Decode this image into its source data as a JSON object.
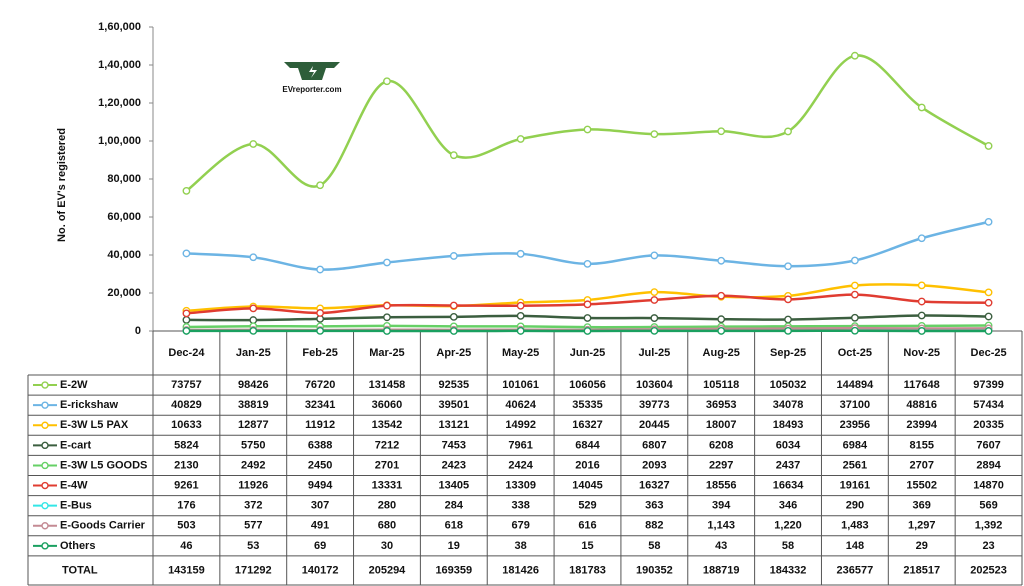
{
  "chart_data": {
    "type": "line",
    "y_label": "No. of EV's registered",
    "logo_text": "EVreporter.com",
    "categories": [
      "Dec-24",
      "Jan-25",
      "Feb-25",
      "Mar-25",
      "Apr-25",
      "May-25",
      "Jun-25",
      "Jul-25",
      "Aug-25",
      "Sep-25",
      "Oct-25",
      "Nov-25",
      "Dec-25"
    ],
    "ylim": [
      0,
      160000
    ],
    "yticks": [
      0,
      {
        "value": 20000,
        "label": "20,000"
      },
      {
        "value": 40000,
        "label": "40,000"
      },
      {
        "value": 60000,
        "label": "60,000"
      },
      {
        "value": 80000,
        "label": "80,000"
      },
      {
        "value": 100000,
        "label": "1,00,000"
      },
      {
        "value": 120000,
        "label": "1,20,000"
      },
      {
        "value": 140000,
        "label": "1,40,000"
      },
      {
        "value": 160000,
        "label": "1,60,000"
      }
    ],
    "series": [
      {
        "name": "E-2W",
        "color": "#92d050",
        "values": [
          73757,
          98426,
          76720,
          131458,
          92535,
          101061,
          106056,
          103604,
          105118,
          105032,
          144894,
          117648,
          97399
        ]
      },
      {
        "name": "E-rickshaw",
        "color": "#6cb4e4",
        "values": [
          40829,
          38819,
          32341,
          36060,
          39501,
          40624,
          35335,
          39773,
          36953,
          34078,
          37100,
          48816,
          57434
        ]
      },
      {
        "name": "E-3W L5 PAX",
        "color": "#ffc000",
        "values": [
          10633,
          12877,
          11912,
          13542,
          13121,
          14992,
          16327,
          20445,
          18007,
          18493,
          23956,
          23994,
          20335
        ]
      },
      {
        "name": "E-cart",
        "color": "#3b5e3f",
        "values": [
          5824,
          5750,
          6388,
          7212,
          7453,
          7961,
          6844,
          6807,
          6208,
          6034,
          6984,
          8155,
          7607
        ]
      },
      {
        "name": "E-3W L5 GOODS",
        "color": "#66d066",
        "values": [
          2130,
          2492,
          2450,
          2701,
          2423,
          2424,
          2016,
          2093,
          2297,
          2437,
          2561,
          2707,
          2894
        ]
      },
      {
        "name": "E-4W",
        "color": "#e03c31",
        "values": [
          9261,
          11926,
          9494,
          13331,
          13405,
          13309,
          14045,
          16327,
          18556,
          16634,
          19161,
          15502,
          14870
        ]
      },
      {
        "name": "E-Bus",
        "color": "#33e6e6",
        "values": [
          176,
          372,
          307,
          280,
          284,
          338,
          529,
          363,
          394,
          346,
          290,
          369,
          569
        ]
      },
      {
        "name": "E-Goods Carrier",
        "color": "#c48a93",
        "values": [
          503,
          577,
          491,
          680,
          618,
          679,
          616,
          882,
          1143,
          1220,
          1483,
          1297,
          1392
        ],
        "value_labels": [
          "503",
          "577",
          "491",
          "680",
          "618",
          "679",
          "616",
          "882",
          "1,143",
          "1,220",
          "1,483",
          "1,297",
          "1,392"
        ]
      },
      {
        "name": "Others",
        "color": "#1aa060",
        "values": [
          46,
          53,
          69,
          30,
          19,
          38,
          15,
          58,
          43,
          58,
          148,
          29,
          23
        ]
      }
    ],
    "total": {
      "label": "TOTAL",
      "values": [
        143159,
        171292,
        140172,
        205294,
        169359,
        181426,
        181783,
        190352,
        188719,
        184332,
        236577,
        218517,
        202523
      ]
    }
  }
}
